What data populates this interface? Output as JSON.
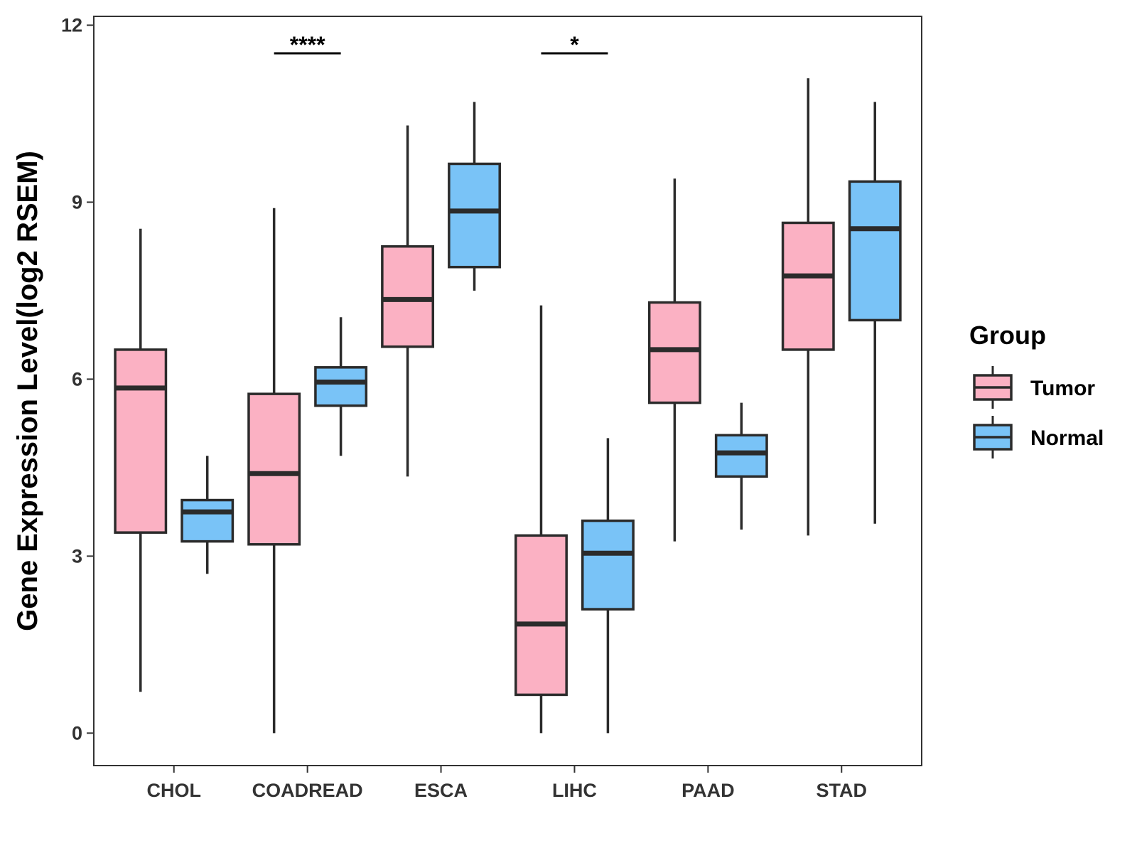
{
  "chart_data": {
    "type": "boxplot",
    "title": "",
    "xlabel": "",
    "ylabel": "Gene Expression Level(log2 RSEM)",
    "ylim": [
      -0.55,
      12.15
    ],
    "yticks": [
      0,
      3,
      6,
      9,
      12
    ],
    "categories": [
      "CHOL",
      "COADREAD",
      "ESCA",
      "LIHC",
      "PAAD",
      "STAD"
    ],
    "legend": {
      "title": "Group",
      "position": "right"
    },
    "series": [
      {
        "name": "Tumor",
        "color": "#FBB1C3",
        "boxes": [
          {
            "min": 0.7,
            "q1": 3.4,
            "median": 5.85,
            "q3": 6.5,
            "max": 8.55
          },
          {
            "min": 0.0,
            "q1": 3.2,
            "median": 4.4,
            "q3": 5.75,
            "max": 8.9
          },
          {
            "min": 4.35,
            "q1": 6.55,
            "median": 7.35,
            "q3": 8.25,
            "max": 10.3
          },
          {
            "min": 0.0,
            "q1": 0.65,
            "median": 1.85,
            "q3": 3.35,
            "max": 7.25
          },
          {
            "min": 3.25,
            "q1": 5.6,
            "median": 6.5,
            "q3": 7.3,
            "max": 9.4
          },
          {
            "min": 3.35,
            "q1": 6.5,
            "median": 7.75,
            "q3": 8.65,
            "max": 11.1
          }
        ]
      },
      {
        "name": "Normal",
        "color": "#79C3F7",
        "boxes": [
          {
            "min": 2.7,
            "q1": 3.25,
            "median": 3.75,
            "q3": 3.95,
            "max": 4.7
          },
          {
            "min": 4.7,
            "q1": 5.55,
            "median": 5.95,
            "q3": 6.2,
            "max": 7.05
          },
          {
            "min": 7.5,
            "q1": 7.9,
            "median": 8.85,
            "q3": 9.65,
            "max": 10.7
          },
          {
            "min": 0.0,
            "q1": 2.1,
            "median": 3.05,
            "q3": 3.6,
            "max": 5.0
          },
          {
            "min": 3.45,
            "q1": 4.35,
            "median": 4.75,
            "q3": 5.05,
            "max": 5.6
          },
          {
            "min": 3.55,
            "q1": 7.0,
            "median": 8.55,
            "q3": 9.35,
            "max": 10.7
          }
        ]
      }
    ],
    "annotations": [
      {
        "category": "COADREAD",
        "label": "****"
      },
      {
        "category": "LIHC",
        "label": "*"
      }
    ]
  }
}
